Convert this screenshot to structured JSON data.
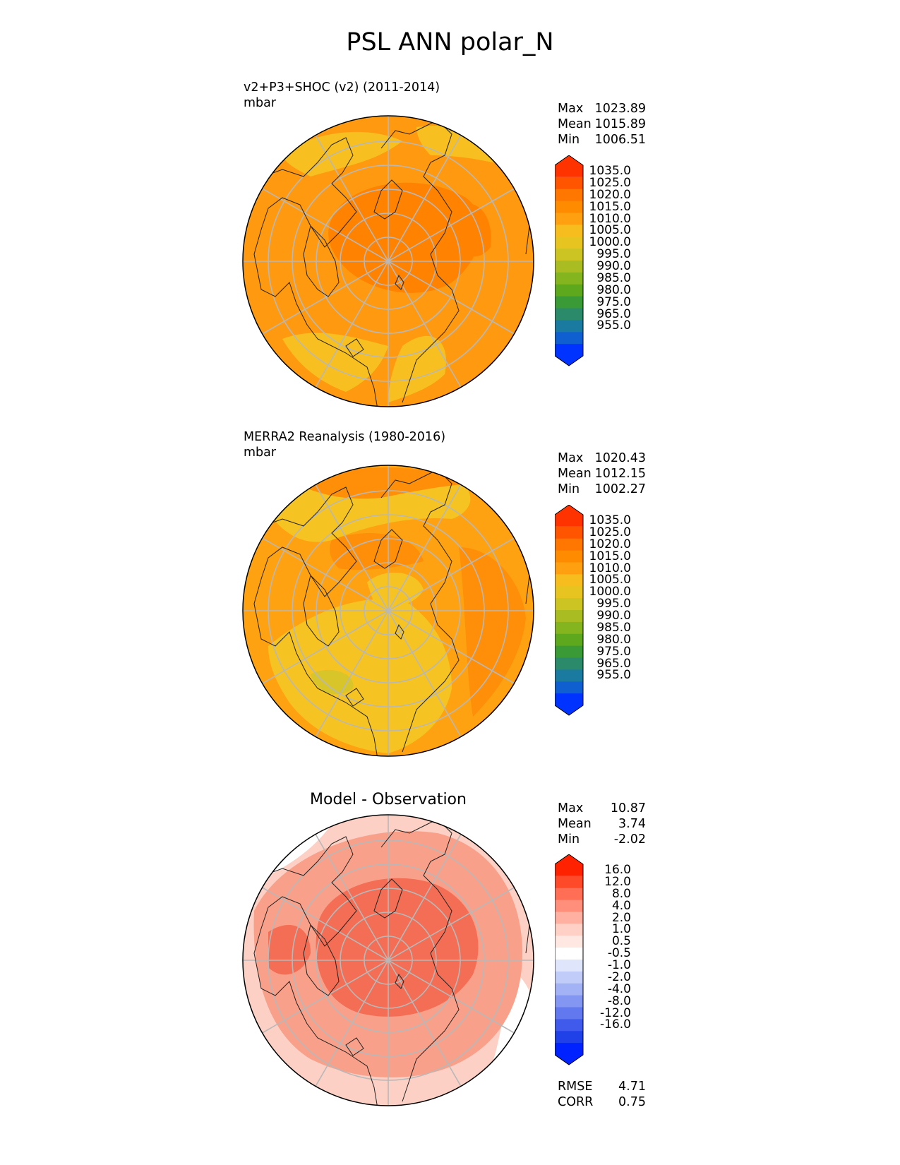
{
  "title": "PSL ANN polar_N",
  "panels": [
    {
      "id": "test",
      "heading": "v2+P3+SHOC (v2) (2011-2014)",
      "units": "mbar",
      "stats": [
        {
          "label": "Max",
          "value": "1023.89"
        },
        {
          "label": "Mean",
          "value": "1015.89"
        },
        {
          "label": "Min",
          "value": "1006.51"
        }
      ]
    },
    {
      "id": "ref",
      "heading": "MERRA2 Reanalysis (1980-2016)",
      "units": "mbar",
      "stats": [
        {
          "label": "Max",
          "value": "1020.43"
        },
        {
          "label": "Mean",
          "value": "1012.15"
        },
        {
          "label": "Min",
          "value": "1002.27"
        }
      ]
    },
    {
      "id": "diff",
      "heading": "Model - Observation",
      "units": "",
      "stats": [
        {
          "label": "Max",
          "value": "10.87"
        },
        {
          "label": "Mean",
          "value": "3.74"
        },
        {
          "label": "Min",
          "value": "-2.02"
        }
      ],
      "metrics": [
        {
          "label": "RMSE",
          "value": "4.71"
        },
        {
          "label": "CORR",
          "value": "0.75"
        }
      ]
    }
  ],
  "colorbars": {
    "abs": {
      "ticks": [
        "1035.0",
        "1025.0",
        "1020.0",
        "1015.0",
        "1010.0",
        "1005.0",
        "1000.0",
        "995.0",
        "990.0",
        "985.0",
        "980.0",
        "975.0",
        "965.0",
        "955.0"
      ],
      "colors": [
        "#ff3300",
        "#ff5500",
        "#ff7700",
        "#ff8c00",
        "#ffa010",
        "#f7bd1e",
        "#e8c420",
        "#cbc423",
        "#a9bd22",
        "#84b51f",
        "#5ea81d",
        "#3a9a35",
        "#2b8a6a",
        "#1a7aa0",
        "#0f5fd0",
        "#0033ff"
      ]
    },
    "diff": {
      "ticks": [
        "16.0",
        "12.0",
        "8.0",
        "4.0",
        "2.0",
        "1.0",
        "0.5",
        "-0.5",
        "-1.0",
        "-2.0",
        "-4.0",
        "-8.0",
        "-12.0",
        "-16.0"
      ],
      "colors": [
        "#ff2200",
        "#ff4a2a",
        "#ff6e55",
        "#ff8e7a",
        "#ffb0a0",
        "#ffd0c5",
        "#ffe8e2",
        "#ffffff",
        "#dfe5fb",
        "#c2ccf8",
        "#a3b2f5",
        "#8396f2",
        "#6278ef",
        "#405bec",
        "#2040e8",
        "#0022ff"
      ]
    }
  },
  "maps": {
    "test": {
      "base": "#ff9a10",
      "dark": "#ff8200",
      "light": "#f7c020"
    },
    "ref": {
      "base": "#ffa212",
      "dark": "#ff8f08",
      "light": "#f5c322",
      "green": "#d7c529"
    },
    "diff": {
      "base": "#f9a08a",
      "dark": "#f46d55",
      "light": "#fcd0c4",
      "white": "#ffffff",
      "blue": "#b9c4f2"
    }
  }
}
